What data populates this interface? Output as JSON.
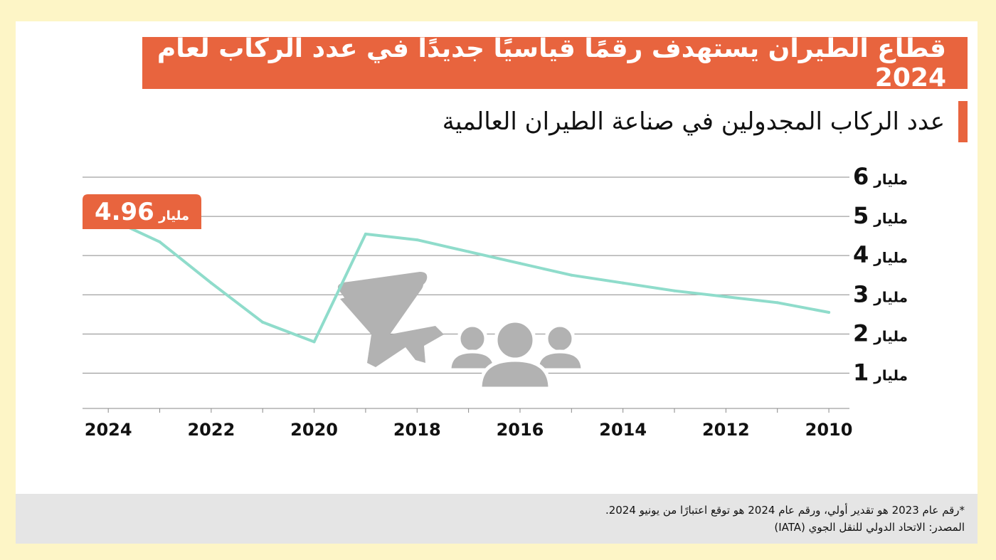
{
  "title": "قطاع الطيران يستهدف رقمًا قياسيًا جديدًا في عدد الركاب لعام 2024",
  "subtitle": "عدد الركاب المجدولين في صناعة الطيران العالمية",
  "colors": {
    "accent": "#e8643e",
    "line": "#8fdccb",
    "grid": "#8a8a8a",
    "icon": "#b2b2b2",
    "background": "#fdf5c6"
  },
  "icons": [
    "airplane-icon",
    "passengers-icon"
  ],
  "chart_data": {
    "type": "line",
    "title": "عدد الركاب المجدولين في صناعة الطيران العالمية",
    "x_axis": {
      "direction": "reversed",
      "range": [
        2024.5,
        2009.6
      ],
      "tick_labels": [
        "2024",
        "2022",
        "2020",
        "2018",
        "2016",
        "2014",
        "2012",
        "2010"
      ]
    },
    "y_axis": {
      "range": [
        0.1,
        6
      ],
      "unit": "مليار",
      "tick_labels": [
        {
          "number": "1",
          "unit": "مليار",
          "value": 1
        },
        {
          "number": "2",
          "unit": "مليار",
          "value": 2
        },
        {
          "number": "3",
          "unit": "مليار",
          "value": 3
        },
        {
          "number": "4",
          "unit": "مليار",
          "value": 4
        },
        {
          "number": "5",
          "unit": "مليار",
          "value": 5
        },
        {
          "number": "6",
          "unit": "مليار",
          "value": 6
        }
      ]
    },
    "grid": true,
    "series": [
      {
        "x": [
          2024,
          2023,
          2022,
          2021,
          2020,
          2019,
          2018,
          2017,
          2016,
          2015,
          2014,
          2013,
          2012,
          2011,
          2010
        ],
        "values": [
          4.96,
          4.35,
          3.3,
          2.3,
          1.8,
          4.55,
          4.4,
          4.1,
          3.8,
          3.5,
          3.3,
          3.1,
          2.95,
          2.8,
          2.55
        ]
      }
    ],
    "annotation": {
      "value": "4.96",
      "unit": "مليار"
    }
  },
  "footer": {
    "note": "*رقم عام 2023 هو تقدير أولي، ورقم عام 2024 هو توقع اعتبارًا من يونيو 2024.",
    "source": "المصدر: الاتحاد الدولي للنقل الجوي (IATA)"
  }
}
